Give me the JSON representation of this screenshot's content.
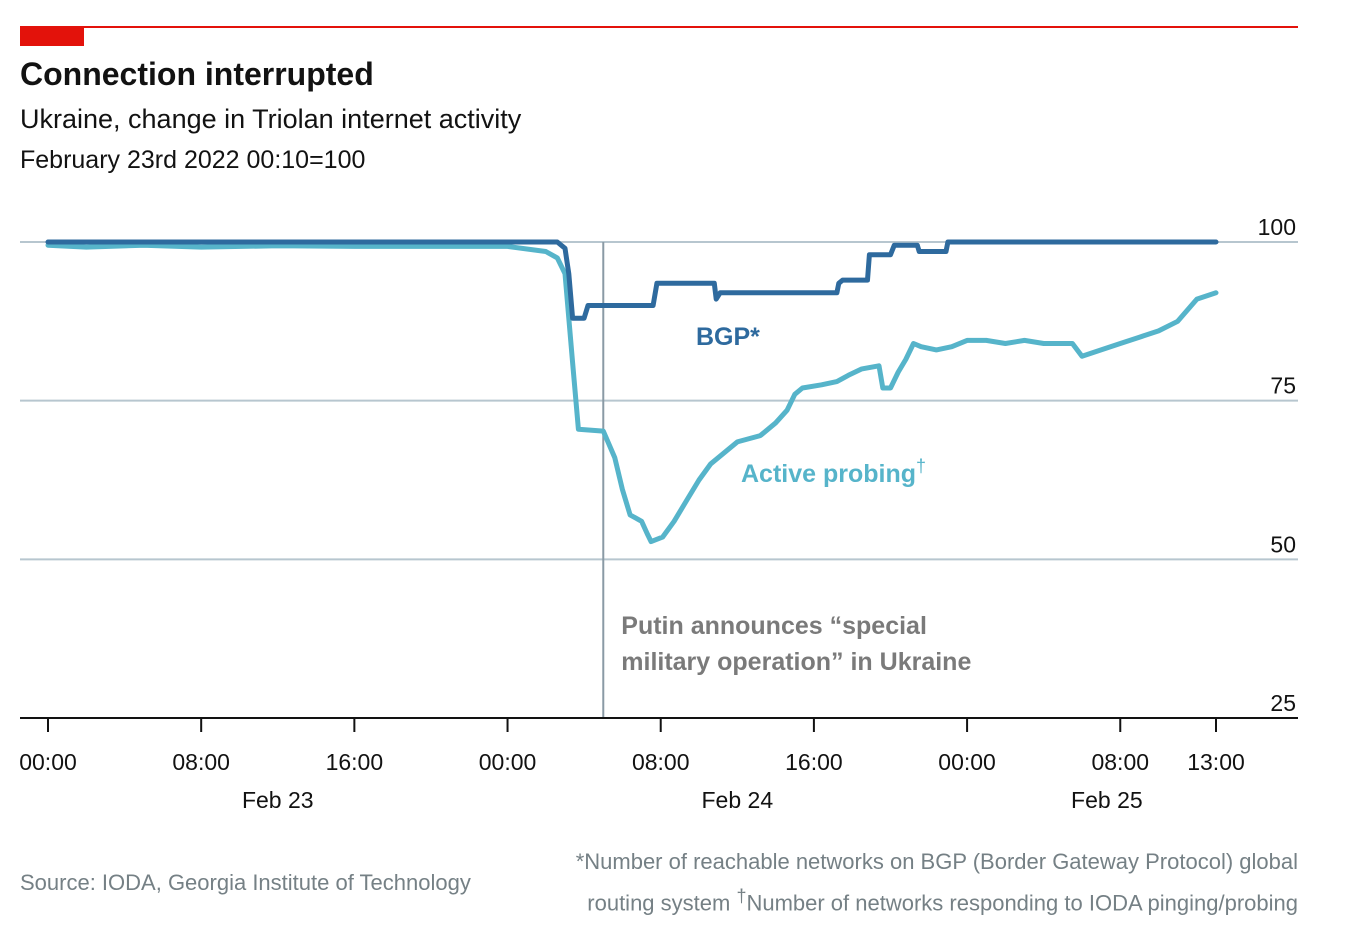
{
  "header": {
    "title": "Connection interrupted",
    "subtitle": "Ukraine, change in Triolan internet activity",
    "index_note": "February 23rd 2022 00:10=100"
  },
  "footer": {
    "source": "Source: IODA, Georgia Institute of Technology",
    "note_line1": "*Number of reachable networks on BGP (Border Gateway Protocol) global",
    "note_line2_pre": "routing system ",
    "dagger": "†",
    "note_line2_post": "Number of networks responding to IODA pinging/probing"
  },
  "colors": {
    "brand_red": "#e3120b",
    "bgp": "#2e6a9e",
    "active_probing": "#56b4ca",
    "gridline": "#b7c6cf",
    "annotation": "#7a7a7a",
    "axis": "#121212"
  },
  "chart_data": {
    "type": "line",
    "title": "Connection interrupted",
    "subtitle": "Ukraine, change in Triolan internet activity",
    "x_unit": "hours from Feb 23 00:00",
    "xlim": [
      0,
      61
    ],
    "ylim": [
      25,
      100
    ],
    "yticks": [
      100,
      75,
      50,
      25
    ],
    "xticks": [
      {
        "x": 0,
        "label": "00:00"
      },
      {
        "x": 8,
        "label": "08:00"
      },
      {
        "x": 16,
        "label": "16:00"
      },
      {
        "x": 24,
        "label": "00:00"
      },
      {
        "x": 32,
        "label": "08:00"
      },
      {
        "x": 40,
        "label": "16:00"
      },
      {
        "x": 48,
        "label": "00:00"
      },
      {
        "x": 56,
        "label": "08:00"
      },
      {
        "x": 61,
        "label": "13:00"
      }
    ],
    "day_labels": [
      {
        "x": 12,
        "label": "Feb 23"
      },
      {
        "x": 36,
        "label": "Feb 24"
      },
      {
        "x": 55.3,
        "label": "Feb 25"
      }
    ],
    "grid": true,
    "annotation": {
      "x": 29,
      "line1": "Putin announces “special",
      "line2": "military operation” in Ukraine"
    },
    "series": [
      {
        "name": "BGP",
        "label": "BGP*",
        "points": [
          [
            0,
            100
          ],
          [
            26.6,
            100
          ],
          [
            27,
            99
          ],
          [
            27.2,
            95
          ],
          [
            27.4,
            88
          ],
          [
            28,
            88
          ],
          [
            28.2,
            90
          ],
          [
            31.6,
            90
          ],
          [
            31.8,
            93.5
          ],
          [
            34.8,
            93.5
          ],
          [
            34.9,
            91
          ],
          [
            35.1,
            92
          ],
          [
            41.2,
            92
          ],
          [
            41.3,
            93.5
          ],
          [
            41.5,
            94
          ],
          [
            42.8,
            94
          ],
          [
            42.9,
            98
          ],
          [
            44,
            98
          ],
          [
            44.2,
            99.5
          ],
          [
            45.4,
            99.5
          ],
          [
            45.5,
            98.5
          ],
          [
            46.9,
            98.5
          ],
          [
            47,
            100
          ],
          [
            61,
            100
          ]
        ]
      },
      {
        "name": "Active probing",
        "label": "Active probing",
        "label_mark": "†",
        "points": [
          [
            0,
            99.5
          ],
          [
            2,
            99.2
          ],
          [
            5,
            99.5
          ],
          [
            8,
            99.2
          ],
          [
            12,
            99.4
          ],
          [
            16,
            99.3
          ],
          [
            20,
            99.3
          ],
          [
            24,
            99.3
          ],
          [
            26,
            98.5
          ],
          [
            26.6,
            97.5
          ],
          [
            27,
            95
          ],
          [
            27.2,
            88
          ],
          [
            27.4,
            81
          ],
          [
            27.7,
            70.5
          ],
          [
            29,
            70.2
          ],
          [
            29.6,
            66
          ],
          [
            30,
            61
          ],
          [
            30.4,
            57
          ],
          [
            31,
            56
          ],
          [
            31.3,
            54
          ],
          [
            31.5,
            52.8
          ],
          [
            32.1,
            53.5
          ],
          [
            32.7,
            56
          ],
          [
            33.4,
            59.5
          ],
          [
            34,
            62.5
          ],
          [
            34.6,
            65
          ],
          [
            35.4,
            67
          ],
          [
            36,
            68.5
          ],
          [
            37.2,
            69.5
          ],
          [
            38,
            71.5
          ],
          [
            38.6,
            73.5
          ],
          [
            39,
            76
          ],
          [
            39.4,
            77
          ],
          [
            40.4,
            77.5
          ],
          [
            41.2,
            78
          ],
          [
            41.8,
            79
          ],
          [
            42.5,
            80
          ],
          [
            43.4,
            80.5
          ],
          [
            43.6,
            77
          ],
          [
            44,
            77
          ],
          [
            44.4,
            79.5
          ],
          [
            44.8,
            81.5
          ],
          [
            45.2,
            84
          ],
          [
            45.6,
            83.5
          ],
          [
            46.4,
            83
          ],
          [
            47.2,
            83.5
          ],
          [
            48,
            84.5
          ],
          [
            49,
            84.5
          ],
          [
            50,
            84
          ],
          [
            51,
            84.5
          ],
          [
            52,
            84
          ],
          [
            53,
            84
          ],
          [
            53.5,
            84
          ],
          [
            54,
            82
          ],
          [
            55,
            83
          ],
          [
            56,
            84
          ],
          [
            57,
            85
          ],
          [
            58,
            86
          ],
          [
            59,
            87.5
          ],
          [
            60,
            91
          ],
          [
            61,
            92
          ]
        ]
      }
    ]
  }
}
